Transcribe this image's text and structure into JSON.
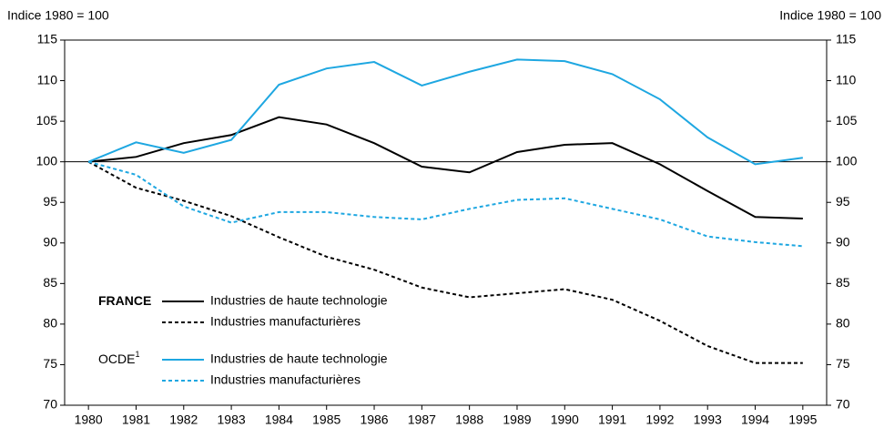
{
  "chart_data": {
    "type": "line",
    "y_label": "Indice 1980 = 100",
    "y2_label": "Indice 1980 = 100",
    "categories": [
      "1980",
      "1981",
      "1982",
      "1983",
      "1984",
      "1985",
      "1986",
      "1987",
      "1988",
      "1989",
      "1990",
      "1991",
      "1992",
      "1993",
      "1994",
      "1995"
    ],
    "series": [
      {
        "name": "Industries de haute technologie",
        "group": "FRANCE",
        "color": "#000000",
        "dashed": false,
        "values": [
          100,
          100.6,
          102.3,
          103.3,
          105.5,
          104.6,
          102.3,
          99.4,
          98.7,
          101.2,
          102.1,
          102.3,
          99.7,
          96.4,
          93.2,
          93.0
        ]
      },
      {
        "name": "Industries manufacturières",
        "group": "FRANCE",
        "color": "#000000",
        "dashed": true,
        "values": [
          100,
          96.8,
          95.2,
          93.3,
          90.7,
          88.3,
          86.7,
          84.5,
          83.3,
          83.8,
          84.3,
          83.0,
          80.4,
          77.3,
          75.2,
          75.2
        ]
      },
      {
        "name": "Industries de haute technologie",
        "group": "OCDE",
        "color": "#1ea7e1",
        "dashed": false,
        "values": [
          100,
          102.4,
          101.1,
          102.7,
          109.5,
          111.5,
          112.3,
          109.4,
          111.1,
          112.6,
          112.4,
          110.8,
          107.7,
          103.0,
          99.7,
          100.5
        ]
      },
      {
        "name": "Industries manufacturières",
        "group": "OCDE",
        "color": "#1ea7e1",
        "dashed": true,
        "values": [
          100,
          98.4,
          94.5,
          92.5,
          93.8,
          93.8,
          93.2,
          92.9,
          94.2,
          95.3,
          95.5,
          94.2,
          92.9,
          90.8,
          90.1,
          89.6
        ]
      }
    ],
    "legend_groups": [
      {
        "label": "FRANCE",
        "bold": true
      },
      {
        "label": "OCDE",
        "footnote_mark": "1",
        "bold": false
      }
    ],
    "reference_line": 100,
    "ylim": [
      70,
      115
    ],
    "yticks": [
      70,
      75,
      80,
      85,
      90,
      95,
      100,
      105,
      110,
      115
    ],
    "y2lim": [
      70,
      115
    ],
    "y2ticks": [
      70,
      75,
      80,
      85,
      90,
      95,
      100,
      105,
      110,
      115
    ]
  }
}
